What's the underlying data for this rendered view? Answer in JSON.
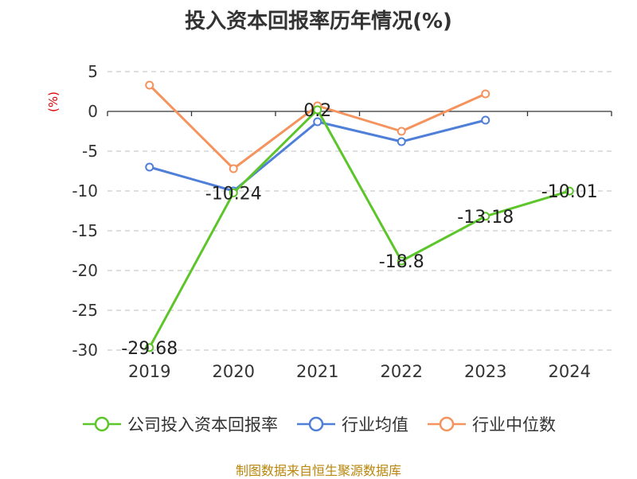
{
  "chart_data": {
    "type": "line",
    "title": "投入资本回报率历年情况(%)",
    "ylabel": "(%)",
    "xlabel": "",
    "categories": [
      "2019",
      "2020",
      "2021",
      "2022",
      "2023",
      "2024"
    ],
    "ylim": [
      -30,
      5
    ],
    "yticks": [
      5,
      0,
      -5,
      -10,
      -15,
      -20,
      -25,
      -30
    ],
    "grid": true,
    "legend_position": "bottom",
    "series": [
      {
        "name": "公司投入资本回报率",
        "color": "#5cc52a",
        "values": [
          -29.68,
          -10.24,
          0.2,
          -18.8,
          -13.18,
          -10.01
        ],
        "labels": [
          "-29.68",
          "-10.24",
          "0.2",
          "-18.8",
          "-13.18",
          "-10.01"
        ]
      },
      {
        "name": "行业均值",
        "color": "#4f7fd8",
        "values": [
          -7.0,
          -10.0,
          -1.3,
          -3.8,
          -1.1,
          null
        ]
      },
      {
        "name": "行业中位数",
        "color": "#f5935e",
        "values": [
          3.3,
          -7.2,
          0.7,
          -2.5,
          2.2,
          null
        ]
      }
    ]
  },
  "source": "制图数据来自恒生聚源数据库"
}
